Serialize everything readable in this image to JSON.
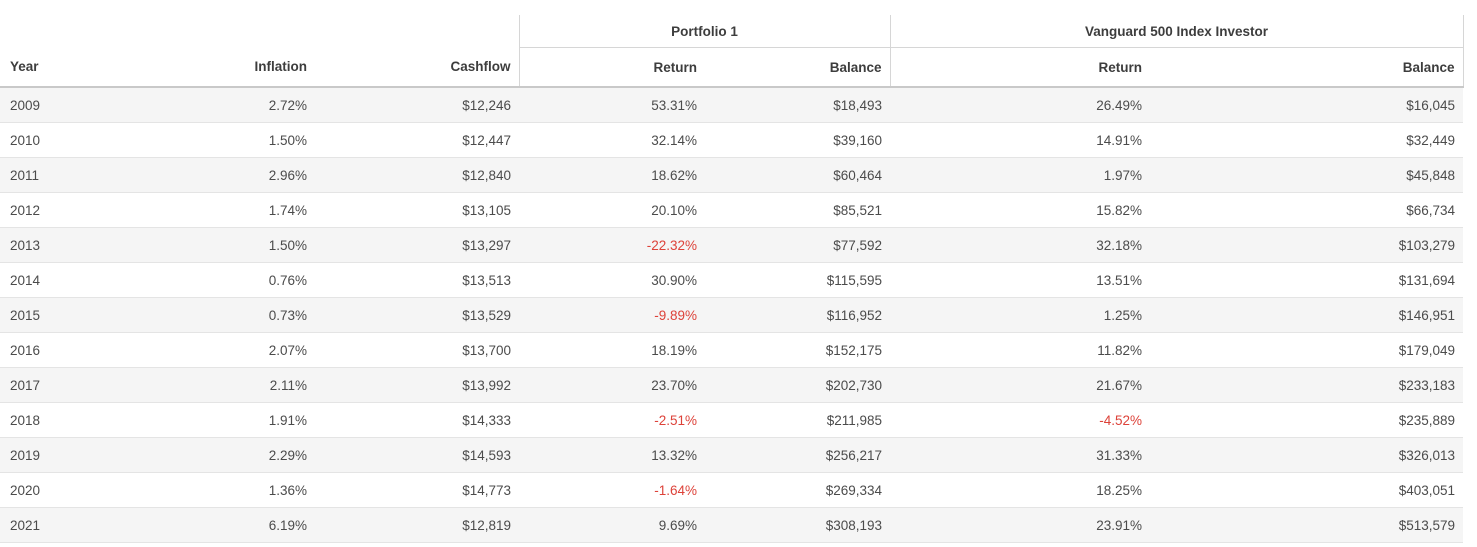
{
  "table": {
    "negative_return_color": "#dd4239",
    "groups": [
      {
        "label": "Portfolio 1"
      },
      {
        "label": "Vanguard 500 Index Investor"
      }
    ],
    "columns": {
      "year": "Year",
      "inflation": "Inflation",
      "cashflow": "Cashflow",
      "p1_return": "Return",
      "p1_balance": "Balance",
      "v_return": "Return",
      "v_balance": "Balance"
    },
    "rows": [
      {
        "year": "2009",
        "inflation": "2.72%",
        "cashflow": "$12,246",
        "p1_return": "53.31%",
        "p1_balance": "$18,493",
        "v_return": "26.49%",
        "v_balance": "$16,045"
      },
      {
        "year": "2010",
        "inflation": "1.50%",
        "cashflow": "$12,447",
        "p1_return": "32.14%",
        "p1_balance": "$39,160",
        "v_return": "14.91%",
        "v_balance": "$32,449"
      },
      {
        "year": "2011",
        "inflation": "2.96%",
        "cashflow": "$12,840",
        "p1_return": "18.62%",
        "p1_balance": "$60,464",
        "v_return": "1.97%",
        "v_balance": "$45,848"
      },
      {
        "year": "2012",
        "inflation": "1.74%",
        "cashflow": "$13,105",
        "p1_return": "20.10%",
        "p1_balance": "$85,521",
        "v_return": "15.82%",
        "v_balance": "$66,734"
      },
      {
        "year": "2013",
        "inflation": "1.50%",
        "cashflow": "$13,297",
        "p1_return": "-22.32%",
        "p1_balance": "$77,592",
        "v_return": "32.18%",
        "v_balance": "$103,279"
      },
      {
        "year": "2014",
        "inflation": "0.76%",
        "cashflow": "$13,513",
        "p1_return": "30.90%",
        "p1_balance": "$115,595",
        "v_return": "13.51%",
        "v_balance": "$131,694"
      },
      {
        "year": "2015",
        "inflation": "0.73%",
        "cashflow": "$13,529",
        "p1_return": "-9.89%",
        "p1_balance": "$116,952",
        "v_return": "1.25%",
        "v_balance": "$146,951"
      },
      {
        "year": "2016",
        "inflation": "2.07%",
        "cashflow": "$13,700",
        "p1_return": "18.19%",
        "p1_balance": "$152,175",
        "v_return": "11.82%",
        "v_balance": "$179,049"
      },
      {
        "year": "2017",
        "inflation": "2.11%",
        "cashflow": "$13,992",
        "p1_return": "23.70%",
        "p1_balance": "$202,730",
        "v_return": "21.67%",
        "v_balance": "$233,183"
      },
      {
        "year": "2018",
        "inflation": "1.91%",
        "cashflow": "$14,333",
        "p1_return": "-2.51%",
        "p1_balance": "$211,985",
        "v_return": "-4.52%",
        "v_balance": "$235,889"
      },
      {
        "year": "2019",
        "inflation": "2.29%",
        "cashflow": "$14,593",
        "p1_return": "13.32%",
        "p1_balance": "$256,217",
        "v_return": "31.33%",
        "v_balance": "$326,013"
      },
      {
        "year": "2020",
        "inflation": "1.36%",
        "cashflow": "$14,773",
        "p1_return": "-1.64%",
        "p1_balance": "$269,334",
        "v_return": "18.25%",
        "v_balance": "$403,051"
      },
      {
        "year": "2021",
        "inflation": "6.19%",
        "cashflow": "$12,819",
        "p1_return": "9.69%",
        "p1_balance": "$308,193",
        "v_return": "23.91%",
        "v_balance": "$513,579"
      }
    ]
  }
}
